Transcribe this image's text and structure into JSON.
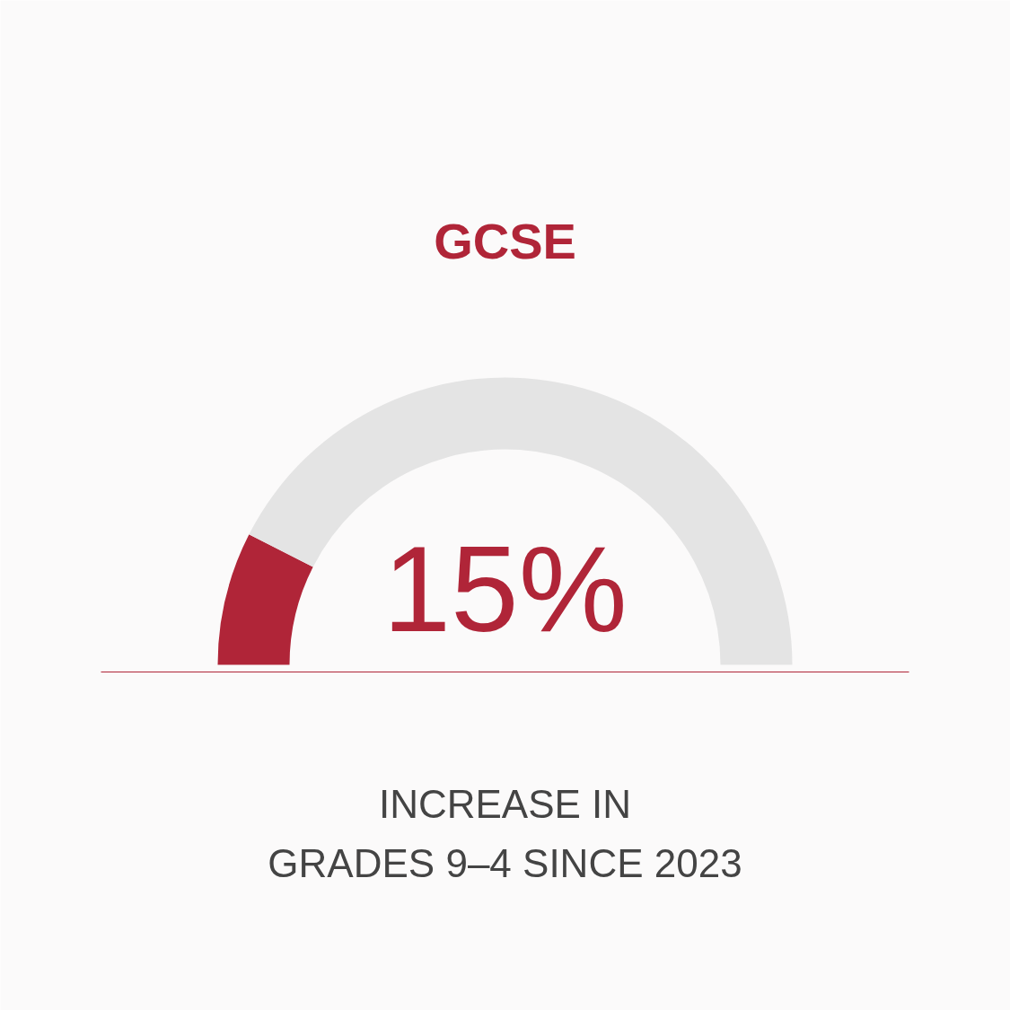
{
  "chart_data": {
    "type": "donut",
    "title": "GCSE",
    "categories": [
      null,
      null
    ],
    "values": [
      15,
      85
    ],
    "colors": [
      "#b02538",
      "#e4e4e4"
    ],
    "annotations": [
      "15%",
      "INCREASE IN\nGRADES 9–4 SINCE 2023"
    ]
  }
}
